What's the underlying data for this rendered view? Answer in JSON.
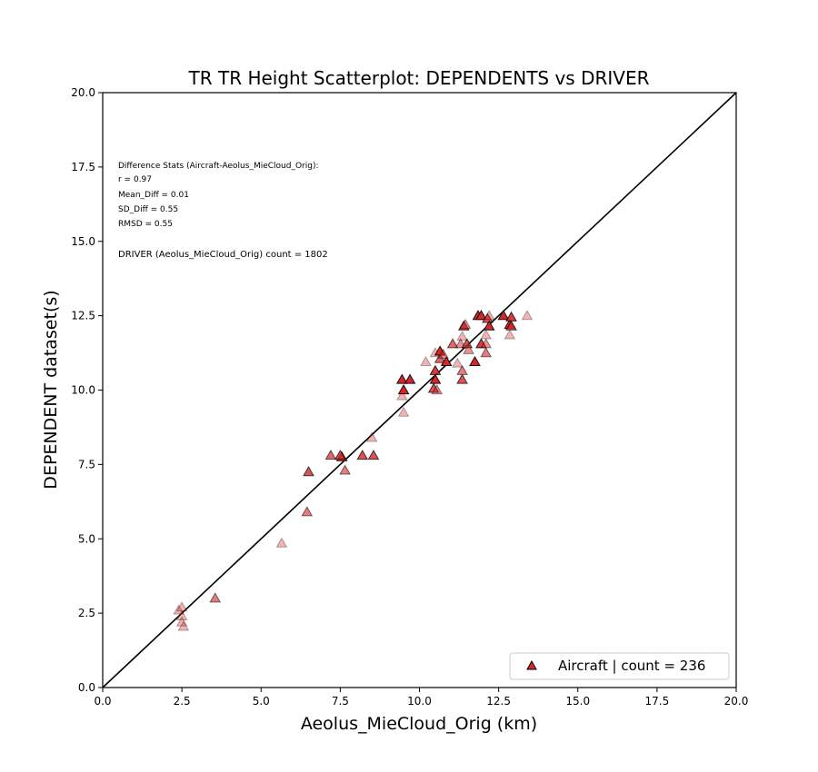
{
  "chart_data": {
    "type": "scatter",
    "title": "TR TR Height Scatterplot: DEPENDENTS vs DRIVER",
    "xlabel": "Aeolus_MieCloud_Orig (km)",
    "ylabel": "DEPENDENT dataset(s)",
    "xlim": [
      0,
      20
    ],
    "ylim": [
      0,
      20
    ],
    "x_ticks": [
      "0.0",
      "2.5",
      "5.0",
      "7.5",
      "10.0",
      "12.5",
      "15.0",
      "17.5",
      "20.0"
    ],
    "y_ticks": [
      "0.0",
      "2.5",
      "5.0",
      "7.5",
      "10.0",
      "12.5",
      "15.0",
      "17.5",
      "20.0"
    ],
    "grid": false,
    "marker": "triangle",
    "marker_color": "#d62728",
    "one_to_one_line": true,
    "stats_lines": [
      "Difference Stats (Aircraft-Aeolus_MieCloud_Orig):",
      "r = 0.97",
      "Mean_Diff = 0.01",
      "SD_Diff = 0.55",
      "RMSD = 0.55"
    ],
    "driver_count_text": "DRIVER (Aeolus_MieCloud_Orig) count = 1802",
    "legend": {
      "placement": "bottom-right",
      "label": "Aircraft | count = 236"
    },
    "series": [
      {
        "name": "Aircraft | count = 236",
        "points": [
          {
            "x": 2.4,
            "y": 2.6,
            "density": 0.35
          },
          {
            "x": 2.5,
            "y": 2.7,
            "density": 0.35
          },
          {
            "x": 2.5,
            "y": 2.4,
            "density": 0.35
          },
          {
            "x": 2.5,
            "y": 2.2,
            "density": 0.35
          },
          {
            "x": 2.55,
            "y": 2.05,
            "density": 0.35
          },
          {
            "x": 3.55,
            "y": 3.0,
            "density": 0.6
          },
          {
            "x": 5.65,
            "y": 4.85,
            "density": 0.35
          },
          {
            "x": 6.45,
            "y": 5.9,
            "density": 0.6
          },
          {
            "x": 6.5,
            "y": 7.25,
            "density": 0.8
          },
          {
            "x": 7.2,
            "y": 7.8,
            "density": 0.7
          },
          {
            "x": 7.55,
            "y": 7.75,
            "density": 0.9
          },
          {
            "x": 7.5,
            "y": 7.8,
            "density": 0.8
          },
          {
            "x": 7.65,
            "y": 7.3,
            "density": 0.6
          },
          {
            "x": 8.2,
            "y": 7.8,
            "density": 0.8
          },
          {
            "x": 8.55,
            "y": 7.8,
            "density": 0.8
          },
          {
            "x": 8.5,
            "y": 8.4,
            "density": 0.35
          },
          {
            "x": 9.5,
            "y": 9.25,
            "density": 0.35
          },
          {
            "x": 9.45,
            "y": 9.8,
            "density": 0.35
          },
          {
            "x": 9.5,
            "y": 10.0,
            "density": 1.0
          },
          {
            "x": 9.45,
            "y": 10.35,
            "density": 1.0
          },
          {
            "x": 9.7,
            "y": 10.35,
            "density": 1.0
          },
          {
            "x": 10.2,
            "y": 10.95,
            "density": 0.35
          },
          {
            "x": 10.45,
            "y": 10.05,
            "density": 0.8
          },
          {
            "x": 10.5,
            "y": 10.35,
            "density": 1.0
          },
          {
            "x": 10.5,
            "y": 10.65,
            "density": 0.9
          },
          {
            "x": 10.55,
            "y": 10.0,
            "density": 0.5
          },
          {
            "x": 10.5,
            "y": 11.25,
            "density": 0.35
          },
          {
            "x": 10.65,
            "y": 11.05,
            "density": 0.7
          },
          {
            "x": 10.65,
            "y": 11.3,
            "density": 1.0
          },
          {
            "x": 10.85,
            "y": 10.95,
            "density": 1.0
          },
          {
            "x": 10.75,
            "y": 11.2,
            "density": 0.5
          },
          {
            "x": 11.05,
            "y": 11.55,
            "density": 0.7
          },
          {
            "x": 11.2,
            "y": 10.9,
            "density": 0.35
          },
          {
            "x": 11.3,
            "y": 11.55,
            "density": 0.5
          },
          {
            "x": 11.35,
            "y": 10.35,
            "density": 0.8
          },
          {
            "x": 11.35,
            "y": 10.65,
            "density": 0.6
          },
          {
            "x": 11.35,
            "y": 11.8,
            "density": 0.35
          },
          {
            "x": 11.4,
            "y": 12.15,
            "density": 0.9
          },
          {
            "x": 11.5,
            "y": 11.55,
            "density": 0.8
          },
          {
            "x": 11.45,
            "y": 12.2,
            "density": 0.5
          },
          {
            "x": 11.55,
            "y": 11.35,
            "density": 0.5
          },
          {
            "x": 11.75,
            "y": 10.95,
            "density": 1.0
          },
          {
            "x": 11.85,
            "y": 12.5,
            "density": 1.0
          },
          {
            "x": 11.95,
            "y": 12.5,
            "density": 1.0
          },
          {
            "x": 11.95,
            "y": 11.55,
            "density": 0.9
          },
          {
            "x": 12.1,
            "y": 11.25,
            "density": 0.6
          },
          {
            "x": 12.1,
            "y": 11.85,
            "density": 0.35
          },
          {
            "x": 12.1,
            "y": 11.55,
            "density": 0.5
          },
          {
            "x": 12.15,
            "y": 12.4,
            "density": 0.8
          },
          {
            "x": 12.2,
            "y": 12.15,
            "density": 1.0
          },
          {
            "x": 12.2,
            "y": 12.5,
            "density": 0.35
          },
          {
            "x": 12.65,
            "y": 12.5,
            "density": 1.0
          },
          {
            "x": 12.85,
            "y": 12.2,
            "density": 1.0
          },
          {
            "x": 12.9,
            "y": 12.45,
            "density": 0.9
          },
          {
            "x": 12.9,
            "y": 12.15,
            "density": 0.8
          },
          {
            "x": 12.85,
            "y": 11.85,
            "density": 0.35
          },
          {
            "x": 13.4,
            "y": 12.5,
            "density": 0.35
          }
        ]
      }
    ]
  }
}
